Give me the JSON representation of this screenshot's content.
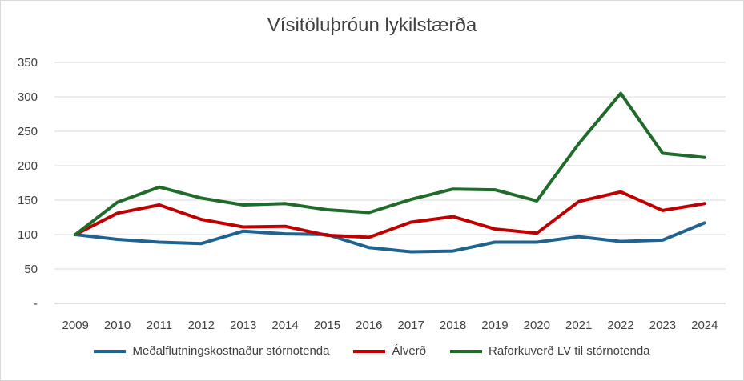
{
  "chart_data": {
    "type": "line",
    "title": "Vísitöluþróun lykilstærða",
    "xlabel": "",
    "ylabel": "",
    "categories": [
      "2009",
      "2010",
      "2011",
      "2012",
      "2013",
      "2014",
      "2015",
      "2016",
      "2017",
      "2018",
      "2019",
      "2020",
      "2021",
      "2022",
      "2023",
      "2024"
    ],
    "ylim": [
      0,
      350
    ],
    "yticks": [
      0,
      50,
      100,
      150,
      200,
      250,
      300,
      350
    ],
    "ytick_labels": [
      "-",
      "50",
      "100",
      "150",
      "200",
      "250",
      "300",
      "350"
    ],
    "grid": true,
    "legend_position": "bottom",
    "series": [
      {
        "name": "Meðalflutningskostnaður stórnotenda",
        "color": "#1f6390",
        "values": [
          100,
          93,
          89,
          87,
          105,
          101,
          100,
          81,
          75,
          76,
          89,
          89,
          97,
          90,
          92,
          117
        ]
      },
      {
        "name": "Álverð",
        "color": "#c00000",
        "values": [
          100,
          131,
          143,
          122,
          111,
          112,
          99,
          96,
          118,
          126,
          108,
          102,
          148,
          162,
          135,
          145
        ]
      },
      {
        "name": "Raforkuverð LV  til stórnotenda",
        "color": "#1f6b2a",
        "values": [
          100,
          147,
          169,
          153,
          143,
          145,
          136,
          132,
          151,
          166,
          165,
          149,
          232,
          305,
          218,
          212
        ]
      }
    ]
  }
}
